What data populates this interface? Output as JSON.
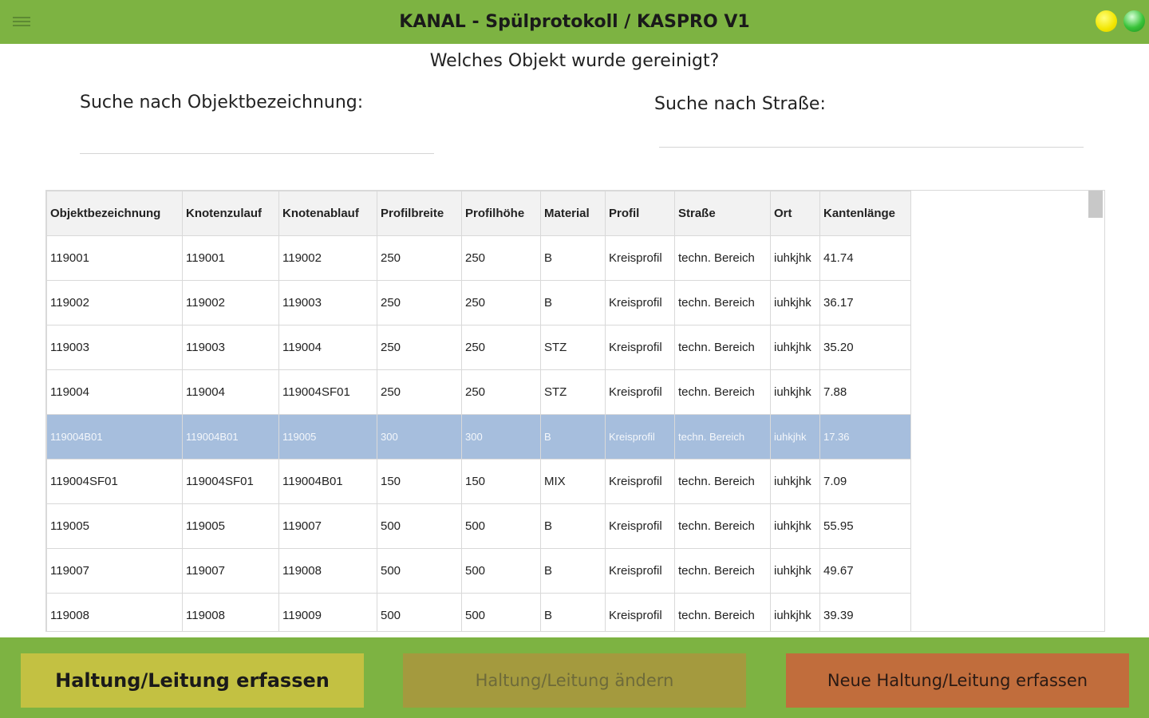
{
  "header": {
    "title": "KANAL - Spülprotokoll / KASPRO V1",
    "menu_icon": "hamburger-menu-icon",
    "status_yellow": "#f2e600",
    "status_green": "#39c339",
    "accent": "#7db342"
  },
  "question": "Welches Objekt wurde gereinigt?",
  "search": {
    "object_label": "Suche nach Objektbezeichnung:",
    "object_value": "",
    "street_label": "Suche nach Straße:",
    "street_value": ""
  },
  "table": {
    "columns": [
      "Objektbezeichnung",
      "Knotenzulauf",
      "Knotenablauf",
      "Profilbreite",
      "Profilhöhe",
      "Material",
      "Profil",
      "Straße",
      "Ort",
      "Kantenlänge"
    ],
    "selected_row": 4,
    "selected_color": "#a6bedd",
    "rows": [
      [
        "119001",
        "119001",
        "119002",
        "250",
        "250",
        "B",
        "Kreisprofil",
        "techn. Bereich",
        "iuhkjhk",
        "41.74"
      ],
      [
        "119002",
        "119002",
        "119003",
        "250",
        "250",
        "B",
        "Kreisprofil",
        "techn. Bereich",
        "iuhkjhk",
        "36.17"
      ],
      [
        "119003",
        "119003",
        "119004",
        "250",
        "250",
        "STZ",
        "Kreisprofil",
        "techn. Bereich",
        "iuhkjhk",
        "35.20"
      ],
      [
        "119004",
        "119004",
        "119004SF01",
        "250",
        "250",
        "STZ",
        "Kreisprofil",
        "techn. Bereich",
        "iuhkjhk",
        "7.88"
      ],
      [
        "119004B01",
        "119004B01",
        "119005",
        "300",
        "300",
        "B",
        "Kreisprofil",
        "techn. Bereich",
        "iuhkjhk",
        "17.36"
      ],
      [
        "119004SF01",
        "119004SF01",
        "119004B01",
        "150",
        "150",
        "MIX",
        "Kreisprofil",
        "techn. Bereich",
        "iuhkjhk",
        "7.09"
      ],
      [
        "119005",
        "119005",
        "119007",
        "500",
        "500",
        "B",
        "Kreisprofil",
        "techn. Bereich",
        "iuhkjhk",
        "55.95"
      ],
      [
        "119007",
        "119007",
        "119008",
        "500",
        "500",
        "B",
        "Kreisprofil",
        "techn. Bereich",
        "iuhkjhk",
        "49.67"
      ],
      [
        "119008",
        "119008",
        "119009",
        "500",
        "500",
        "B",
        "Kreisprofil",
        "techn. Bereich",
        "iuhkjhk",
        "39.39"
      ]
    ]
  },
  "buttons": {
    "capture": "Haltung/Leitung erfassen",
    "change": "Haltung/Leitung ändern",
    "new": "Neue Haltung/Leitung erfassen"
  }
}
